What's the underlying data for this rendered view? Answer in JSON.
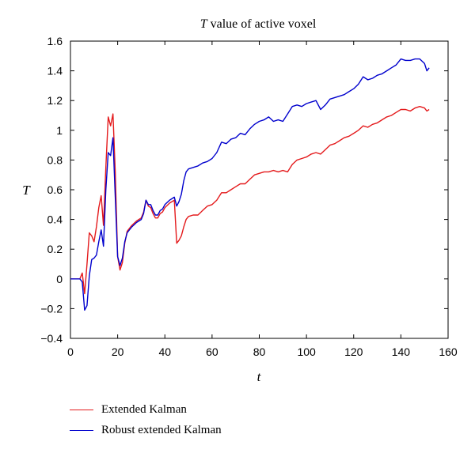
{
  "chart_data": {
    "type": "line",
    "title_italic": "T",
    "title_rest": " value of active voxel",
    "xlabel": "t",
    "ylabel": "T",
    "xlim": [
      0,
      160
    ],
    "ylim": [
      -0.4,
      1.6
    ],
    "xticks": [
      "0",
      "20",
      "40",
      "60",
      "80",
      "100",
      "120",
      "140",
      "160"
    ],
    "yticks": [
      "-0.4",
      "-0.2",
      "0",
      "0.2",
      "0.4",
      "0.6",
      "0.8",
      "1",
      "1.2",
      "1.4",
      "1.6"
    ],
    "legend_position": "below",
    "grid": false,
    "series": [
      {
        "name": "Extended Kalman",
        "color": "#e41a1c",
        "points": [
          [
            0,
            0
          ],
          [
            4,
            0
          ],
          [
            5,
            0.04
          ],
          [
            6,
            -0.1
          ],
          [
            7,
            0.1
          ],
          [
            8,
            0.31
          ],
          [
            9,
            0.29
          ],
          [
            10,
            0.25
          ],
          [
            11,
            0.35
          ],
          [
            12,
            0.48
          ],
          [
            13,
            0.56
          ],
          [
            14,
            0.36
          ],
          [
            15,
            0.75
          ],
          [
            16,
            1.09
          ],
          [
            17,
            1.03
          ],
          [
            18,
            1.11
          ],
          [
            19,
            0.72
          ],
          [
            20,
            0.15
          ],
          [
            21,
            0.06
          ],
          [
            22,
            0.11
          ],
          [
            23,
            0.24
          ],
          [
            24,
            0.32
          ],
          [
            26,
            0.36
          ],
          [
            28,
            0.39
          ],
          [
            30,
            0.41
          ],
          [
            31,
            0.45
          ],
          [
            32,
            0.53
          ],
          [
            33,
            0.49
          ],
          [
            34,
            0.48
          ],
          [
            35,
            0.44
          ],
          [
            36,
            0.41
          ],
          [
            37,
            0.41
          ],
          [
            38,
            0.44
          ],
          [
            39,
            0.45
          ],
          [
            40,
            0.48
          ],
          [
            42,
            0.51
          ],
          [
            44,
            0.53
          ],
          [
            45,
            0.24
          ],
          [
            46,
            0.26
          ],
          [
            47,
            0.29
          ],
          [
            48,
            0.35
          ],
          [
            49,
            0.4
          ],
          [
            50,
            0.42
          ],
          [
            52,
            0.43
          ],
          [
            54,
            0.43
          ],
          [
            56,
            0.46
          ],
          [
            58,
            0.49
          ],
          [
            60,
            0.5
          ],
          [
            62,
            0.53
          ],
          [
            64,
            0.58
          ],
          [
            66,
            0.58
          ],
          [
            68,
            0.6
          ],
          [
            70,
            0.62
          ],
          [
            72,
            0.64
          ],
          [
            74,
            0.64
          ],
          [
            76,
            0.67
          ],
          [
            78,
            0.7
          ],
          [
            80,
            0.71
          ],
          [
            82,
            0.72
          ],
          [
            84,
            0.72
          ],
          [
            86,
            0.73
          ],
          [
            88,
            0.72
          ],
          [
            90,
            0.73
          ],
          [
            92,
            0.72
          ],
          [
            94,
            0.77
          ],
          [
            96,
            0.8
          ],
          [
            98,
            0.81
          ],
          [
            100,
            0.82
          ],
          [
            102,
            0.84
          ],
          [
            104,
            0.85
          ],
          [
            106,
            0.84
          ],
          [
            108,
            0.87
          ],
          [
            110,
            0.9
          ],
          [
            112,
            0.91
          ],
          [
            114,
            0.93
          ],
          [
            116,
            0.95
          ],
          [
            118,
            0.96
          ],
          [
            120,
            0.98
          ],
          [
            122,
            1.0
          ],
          [
            124,
            1.03
          ],
          [
            126,
            1.02
          ],
          [
            128,
            1.04
          ],
          [
            130,
            1.05
          ],
          [
            132,
            1.07
          ],
          [
            134,
            1.09
          ],
          [
            136,
            1.1
          ],
          [
            138,
            1.12
          ],
          [
            140,
            1.14
          ],
          [
            142,
            1.14
          ],
          [
            144,
            1.13
          ],
          [
            146,
            1.15
          ],
          [
            148,
            1.16
          ],
          [
            150,
            1.15
          ],
          [
            151,
            1.13
          ],
          [
            152,
            1.14
          ]
        ]
      },
      {
        "name": "Robust extended Kalman",
        "color": "#0000cd",
        "points": [
          [
            0,
            0
          ],
          [
            4,
            0
          ],
          [
            5,
            -0.02
          ],
          [
            6,
            -0.21
          ],
          [
            7,
            -0.18
          ],
          [
            8,
            0.02
          ],
          [
            9,
            0.13
          ],
          [
            10,
            0.14
          ],
          [
            11,
            0.16
          ],
          [
            12,
            0.25
          ],
          [
            13,
            0.33
          ],
          [
            14,
            0.22
          ],
          [
            15,
            0.6
          ],
          [
            16,
            0.85
          ],
          [
            17,
            0.83
          ],
          [
            18,
            0.95
          ],
          [
            19,
            0.55
          ],
          [
            20,
            0.15
          ],
          [
            21,
            0.09
          ],
          [
            22,
            0.14
          ],
          [
            23,
            0.25
          ],
          [
            24,
            0.31
          ],
          [
            26,
            0.35
          ],
          [
            28,
            0.38
          ],
          [
            30,
            0.4
          ],
          [
            31,
            0.44
          ],
          [
            32,
            0.53
          ],
          [
            33,
            0.5
          ],
          [
            34,
            0.5
          ],
          [
            35,
            0.46
          ],
          [
            36,
            0.43
          ],
          [
            37,
            0.43
          ],
          [
            38,
            0.46
          ],
          [
            39,
            0.47
          ],
          [
            40,
            0.5
          ],
          [
            42,
            0.53
          ],
          [
            44,
            0.55
          ],
          [
            45,
            0.49
          ],
          [
            46,
            0.52
          ],
          [
            47,
            0.57
          ],
          [
            48,
            0.66
          ],
          [
            49,
            0.72
          ],
          [
            50,
            0.74
          ],
          [
            52,
            0.75
          ],
          [
            54,
            0.76
          ],
          [
            56,
            0.78
          ],
          [
            58,
            0.79
          ],
          [
            60,
            0.81
          ],
          [
            62,
            0.85
          ],
          [
            64,
            0.92
          ],
          [
            66,
            0.91
          ],
          [
            68,
            0.94
          ],
          [
            70,
            0.95
          ],
          [
            72,
            0.98
          ],
          [
            74,
            0.97
          ],
          [
            76,
            1.01
          ],
          [
            78,
            1.04
          ],
          [
            80,
            1.06
          ],
          [
            82,
            1.07
          ],
          [
            84,
            1.09
          ],
          [
            86,
            1.06
          ],
          [
            88,
            1.07
          ],
          [
            90,
            1.06
          ],
          [
            92,
            1.11
          ],
          [
            94,
            1.16
          ],
          [
            96,
            1.17
          ],
          [
            98,
            1.16
          ],
          [
            100,
            1.18
          ],
          [
            102,
            1.19
          ],
          [
            104,
            1.2
          ],
          [
            106,
            1.14
          ],
          [
            108,
            1.17
          ],
          [
            110,
            1.21
          ],
          [
            112,
            1.22
          ],
          [
            114,
            1.23
          ],
          [
            116,
            1.24
          ],
          [
            118,
            1.26
          ],
          [
            120,
            1.28
          ],
          [
            122,
            1.31
          ],
          [
            124,
            1.36
          ],
          [
            126,
            1.34
          ],
          [
            128,
            1.35
          ],
          [
            130,
            1.37
          ],
          [
            132,
            1.38
          ],
          [
            134,
            1.4
          ],
          [
            136,
            1.42
          ],
          [
            138,
            1.44
          ],
          [
            140,
            1.48
          ],
          [
            142,
            1.47
          ],
          [
            144,
            1.47
          ],
          [
            146,
            1.48
          ],
          [
            148,
            1.48
          ],
          [
            150,
            1.45
          ],
          [
            151,
            1.4
          ],
          [
            152,
            1.42
          ]
        ]
      }
    ]
  }
}
